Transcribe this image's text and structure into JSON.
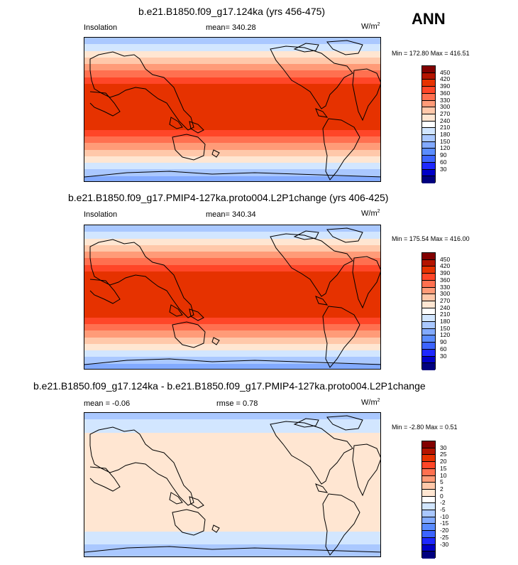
{
  "season": "ANN",
  "colors": {
    "ramp": [
      "#00007f",
      "#0000c8",
      "#1e28ff",
      "#3c64ff",
      "#5a8cff",
      "#82aaff",
      "#aac8ff",
      "#d2e6ff",
      "#ffffff",
      "#ffe6d2",
      "#ffc8aa",
      "#ff9b78",
      "#ff7050",
      "#ff4628",
      "#e63200",
      "#b41400",
      "#820000"
    ]
  },
  "panels": [
    {
      "title": "b.e21.B1850.f09_g17.124ka (yrs 456-475)",
      "left_label": "Insolation",
      "center_label": "mean= 340.28",
      "units": "W/m",
      "units_sup": "2",
      "minmax": "Min = 172.80 Max = 416.51",
      "colorbar_labels": [
        "450",
        "420",
        "390",
        "360",
        "330",
        "300",
        "270",
        "240",
        "210",
        "180",
        "150",
        "120",
        "90",
        "60",
        "30"
      ],
      "band_colors": [
        "#aac8ff",
        "#d2e6ff",
        "#ffe6d2",
        "#ffc8aa",
        "#ff9b78",
        "#ff7050",
        "#ff4628",
        "#e63200",
        "#e63200",
        "#e63200",
        "#e63200",
        "#e63200",
        "#e63200",
        "#e63200",
        "#ff4628",
        "#ff7050",
        "#ff9b78",
        "#ffc8aa",
        "#ffe6d2",
        "#d2e6ff",
        "#aac8ff",
        "#82aaff"
      ]
    },
    {
      "title": "b.e21.B1850.f09_g17.PMIP4-127ka.proto004.L2P1change (yrs 406-425)",
      "left_label": "Insolation",
      "center_label": "mean= 340.34",
      "units": "W/m",
      "units_sup": "2",
      "minmax": "Min = 175.54 Max = 416.00",
      "colorbar_labels": [
        "450",
        "420",
        "390",
        "360",
        "330",
        "300",
        "270",
        "240",
        "210",
        "180",
        "150",
        "120",
        "90",
        "60",
        "30"
      ],
      "band_colors": [
        "#aac8ff",
        "#d2e6ff",
        "#ffe6d2",
        "#ffc8aa",
        "#ff9b78",
        "#ff7050",
        "#ff4628",
        "#e63200",
        "#e63200",
        "#e63200",
        "#e63200",
        "#e63200",
        "#e63200",
        "#e63200",
        "#ff4628",
        "#ff7050",
        "#ff9b78",
        "#ffc8aa",
        "#ffe6d2",
        "#d2e6ff",
        "#aac8ff",
        "#82aaff"
      ]
    },
    {
      "title": "b.e21.B1850.f09_g17.124ka - b.e21.B1850.f09_g17.PMIP4-127ka.proto004.L2P1change",
      "left_label": "mean =  -0.06",
      "center_label": "rmse =   0.78",
      "units": "W/m",
      "units_sup": "2",
      "minmax": "Min =  -2.80 Max =   0.51",
      "colorbar_labels": [
        "30",
        "25",
        "20",
        "15",
        "10",
        "5",
        "2",
        "0",
        "-2",
        "-5",
        "-10",
        "-15",
        "-20",
        "-25",
        "-30"
      ],
      "band_colors": [
        "#aac8ff",
        "#d2e6ff",
        "#d2e6ff",
        "#ffe6d2",
        "#ffe6d2",
        "#ffe6d2",
        "#ffe6d2",
        "#ffe6d2",
        "#ffe6d2",
        "#ffe6d2",
        "#ffe6d2",
        "#ffe6d2",
        "#ffe6d2",
        "#ffe6d2",
        "#ffe6d2",
        "#ffe6d2",
        "#ffe6d2",
        "#ffe6d2",
        "#d2e6ff",
        "#d2e6ff",
        "#aac8ff",
        "#aac8ff"
      ]
    }
  ]
}
